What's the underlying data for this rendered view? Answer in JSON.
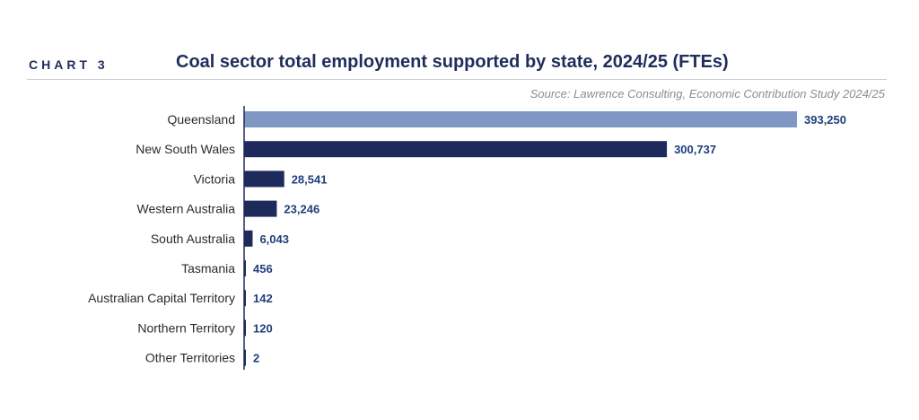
{
  "header": {
    "chart_label": "CHART 3",
    "title": "Coal sector total employment supported by state, 2024/25 (FTEs)",
    "source": "Source: Lawrence Consulting, Economic Contribution Study 2024/25"
  },
  "chart_data": {
    "type": "bar",
    "orientation": "horizontal",
    "title": "Coal sector total employment supported by state, 2024/25 (FTEs)",
    "categories": [
      "Queensland",
      "New South Wales",
      "Victoria",
      "Western Australia",
      "South Australia",
      "Tasmania",
      "Australian Capital Territory",
      "Northern Territory",
      "Other Territories"
    ],
    "values": [
      393250,
      300737,
      28541,
      23246,
      6043,
      456,
      142,
      120,
      2
    ],
    "value_labels": [
      "393,250",
      "300,737",
      "28,541",
      "23,246",
      "6,043",
      "456",
      "142",
      "120",
      "2"
    ],
    "xlim": [
      0,
      393250
    ],
    "grid": false,
    "colors": {
      "highlight": "#7f97c3",
      "bar": "#1f2a5c",
      "value_text": "#1f3f7a"
    },
    "highlight_index": 0
  }
}
